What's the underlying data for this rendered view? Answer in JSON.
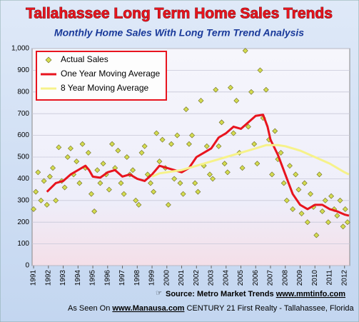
{
  "chart_data": {
    "type": "scatter",
    "title": "Tallahassee Long Term Home Sales Trends",
    "subtitle": "Monthly Home Sales With Long Term Trend Analysis",
    "xlim": [
      1990.9,
      2012.35
    ],
    "xticks": [
      1991,
      1992,
      1993,
      1994,
      1995,
      1996,
      1997,
      1998,
      1999,
      2000,
      2001,
      2002,
      2003,
      2004,
      2005,
      2006,
      2007,
      2008,
      2009,
      2010,
      2011,
      2012
    ],
    "ylim": [
      0,
      1000
    ],
    "yticks": [
      0,
      100,
      200,
      300,
      400,
      500,
      600,
      700,
      800,
      900,
      {
        "value": 1000,
        "label": "1,000"
      }
    ],
    "grid": true,
    "legend": "top-left",
    "series": [
      {
        "name": "Actual Sales",
        "color": "#d4dc50",
        "x": [
          1991.0,
          1991.15,
          1991.3,
          1991.5,
          1991.7,
          1991.9,
          1992.1,
          1992.3,
          1992.5,
          1992.7,
          1992.9,
          1993.1,
          1993.3,
          1993.5,
          1993.7,
          1993.9,
          1994.1,
          1994.3,
          1994.5,
          1994.7,
          1994.9,
          1995.1,
          1995.3,
          1995.5,
          1995.7,
          1995.9,
          1996.1,
          1996.3,
          1996.5,
          1996.7,
          1996.9,
          1997.1,
          1997.3,
          1997.5,
          1997.7,
          1997.9,
          1998.1,
          1998.3,
          1998.5,
          1998.7,
          1998.9,
          1999.1,
          1999.3,
          1999.5,
          1999.7,
          1999.9,
          2000.1,
          2000.3,
          2000.5,
          2000.7,
          2000.9,
          2001.1,
          2001.3,
          2001.5,
          2001.7,
          2001.9,
          2002.1,
          2002.3,
          2002.5,
          2002.7,
          2002.9,
          2003.1,
          2003.3,
          2003.5,
          2003.7,
          2003.9,
          2004.1,
          2004.3,
          2004.5,
          2004.7,
          2004.9,
          2005.1,
          2005.3,
          2005.5,
          2005.7,
          2005.9,
          2006.1,
          2006.3,
          2006.5,
          2006.7,
          2006.9,
          2007.1,
          2007.3,
          2007.5,
          2007.7,
          2007.9,
          2008.1,
          2008.3,
          2008.5,
          2008.7,
          2008.9,
          2009.1,
          2009.3,
          2009.5,
          2009.7,
          2009.9,
          2010.1,
          2010.3,
          2010.5,
          2010.7,
          2010.9,
          2011.1,
          2011.3,
          2011.5,
          2011.7,
          2011.9,
          2012.05,
          2012.2
        ],
        "values": [
          260,
          340,
          430,
          300,
          390,
          280,
          410,
          450,
          300,
          545,
          390,
          360,
          500,
          540,
          420,
          480,
          380,
          560,
          450,
          520,
          330,
          250,
          440,
          380,
          470,
          420,
          350,
          560,
          450,
          530,
          380,
          330,
          500,
          420,
          440,
          300,
          280,
          520,
          550,
          420,
          380,
          340,
          610,
          480,
          580,
          450,
          280,
          560,
          400,
          600,
          380,
          330,
          720,
          560,
          600,
          380,
          340,
          760,
          460,
          550,
          420,
          400,
          810,
          550,
          660,
          470,
          430,
          820,
          610,
          760,
          520,
          450,
          990,
          640,
          800,
          560,
          470,
          900,
          680,
          810,
          580,
          420,
          620,
          490,
          520,
          380,
          300,
          460,
          260,
          420,
          350,
          240,
          380,
          200,
          330,
          270,
          140,
          420,
          250,
          300,
          200,
          320,
          260,
          230,
          300,
          180,
          260,
          200
        ],
        "marker": "diamond"
      },
      {
        "name": "One Year Moving Average",
        "color": "#e8141e",
        "x": [
          1991.9,
          1992.5,
          1993.0,
          1993.5,
          1994.0,
          1994.5,
          1994.75,
          1995.0,
          1995.5,
          1996.0,
          1996.5,
          1997.0,
          1997.5,
          1998.0,
          1998.5,
          1999.0,
          1999.5,
          2000.0,
          2000.5,
          2001.0,
          2001.5,
          2002.0,
          2002.5,
          2003.0,
          2003.5,
          2004.0,
          2004.5,
          2005.0,
          2005.5,
          2006.0,
          2006.5,
          2006.8,
          2007.0,
          2007.5,
          2008.0,
          2008.5,
          2009.0,
          2009.5,
          2010.0,
          2010.5,
          2011.0,
          2011.5,
          2012.0,
          2012.3
        ],
        "values": [
          340,
          380,
          390,
          420,
          440,
          460,
          440,
          410,
          405,
          430,
          440,
          410,
          420,
          400,
          390,
          420,
          460,
          450,
          440,
          430,
          450,
          500,
          520,
          540,
          590,
          610,
          640,
          630,
          660,
          690,
          695,
          640,
          580,
          510,
          420,
          330,
          280,
          260,
          280,
          280,
          260,
          250,
          235,
          230
        ]
      },
      {
        "name": "8 Year Moving Average",
        "color": "#f6f28a",
        "x": [
          1999.0,
          1999.5,
          2000.0,
          2001.0,
          2002.0,
          2003.0,
          2004.0,
          2005.0,
          2006.0,
          2006.7,
          2007.5,
          2008.0,
          2009.0,
          2010.0,
          2011.0,
          2012.0,
          2012.3
        ],
        "values": [
          410,
          425,
          430,
          440,
          460,
          480,
          500,
          520,
          540,
          555,
          555,
          550,
          530,
          500,
          470,
          430,
          420
        ]
      }
    ],
    "source_label": "Source:",
    "source_name": "Metro Market Trends",
    "source_url": "www.mmtinfo.com",
    "credit_label": "As Seen On",
    "credit_url": "www.Manausa.com",
    "credit_text": "CENTURY 21 First Realty - Tallahassee, Florida"
  }
}
